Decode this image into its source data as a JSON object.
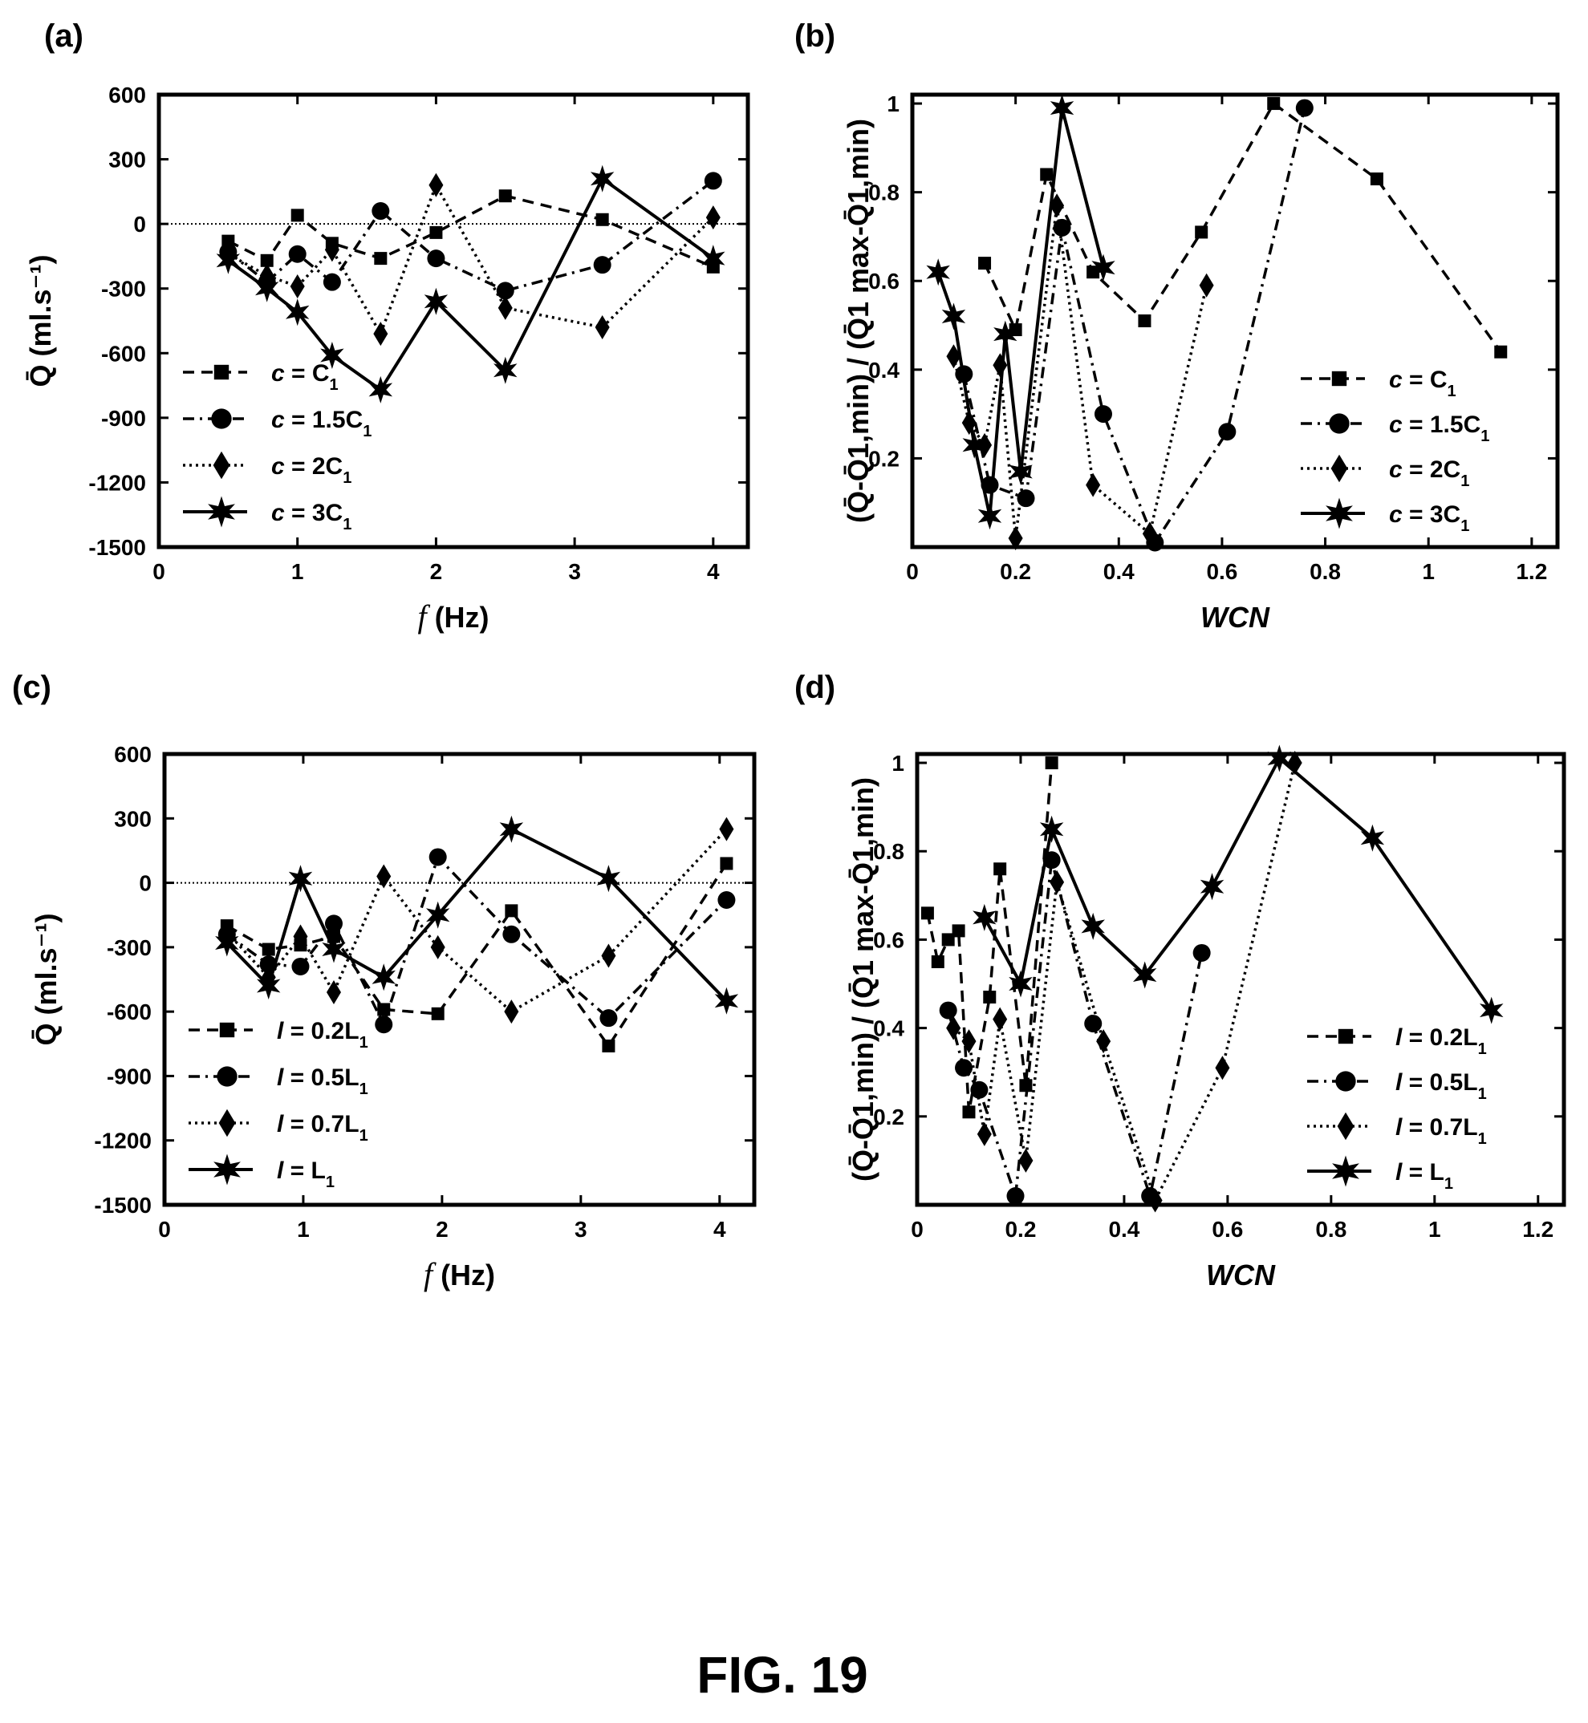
{
  "figure_caption": "FIG. 19",
  "chart_data": [
    {
      "id": "a",
      "panel_label": "(a)",
      "type": "line",
      "xlabel": "f (Hz)",
      "ylabel": "Q̄ (ml.s⁻¹)",
      "xlim": [
        0,
        4.25
      ],
      "ylim": [
        -1500,
        600
      ],
      "xticks": [
        0,
        1,
        2,
        3,
        4
      ],
      "yticks": [
        600,
        300,
        0,
        -300,
        -600,
        -900,
        -1200,
        -1500
      ],
      "zero_line": true,
      "legend": "bottom-left",
      "series": [
        {
          "name": "c = C1",
          "marker": "square",
          "dash": "dashed",
          "x": [
            0.5,
            0.78,
            1.0,
            1.25,
            1.6,
            2.0,
            2.5,
            3.2,
            4.0
          ],
          "y": [
            -80,
            -170,
            40,
            -90,
            -160,
            -40,
            130,
            20,
            -200
          ]
        },
        {
          "name": "c = 1.5C1",
          "marker": "circle",
          "dash": "dashdot",
          "x": [
            0.5,
            0.78,
            1.0,
            1.25,
            1.6,
            2.0,
            2.5,
            3.2,
            4.0
          ],
          "y": [
            -130,
            -270,
            -140,
            -270,
            60,
            -160,
            -310,
            -190,
            200
          ]
        },
        {
          "name": "c = 2C1",
          "marker": "diamond",
          "dash": "dotted",
          "x": [
            0.5,
            0.78,
            1.0,
            1.25,
            1.6,
            2.0,
            2.5,
            3.2,
            4.0
          ],
          "y": [
            -140,
            -240,
            -290,
            -120,
            -510,
            180,
            -390,
            -480,
            30
          ]
        },
        {
          "name": "c = 3C1",
          "marker": "star",
          "dash": "solid",
          "x": [
            0.5,
            0.78,
            1.0,
            1.25,
            1.6,
            2.0,
            2.5,
            3.2,
            4.0
          ],
          "y": [
            -170,
            -300,
            -410,
            -610,
            -770,
            -360,
            -680,
            210,
            -160
          ]
        }
      ]
    },
    {
      "id": "b",
      "panel_label": "(b)",
      "type": "line",
      "xlabel": "WCN",
      "ylabel": "(Q̄-Q̄1,min) / (Q̄1 max-Q̄1,min)",
      "xlim": [
        0,
        1.25
      ],
      "ylim": [
        0,
        1.02
      ],
      "xticks": [
        0,
        0.2,
        0.4,
        0.6,
        0.8,
        1,
        1.2
      ],
      "yticks": [
        0.2,
        0.4,
        0.6,
        0.8,
        1
      ],
      "legend": "right",
      "series": [
        {
          "name": "c = C1",
          "marker": "square",
          "dash": "dashed",
          "x": [
            0.14,
            0.2,
            0.26,
            0.35,
            0.45,
            0.56,
            0.7,
            0.9,
            1.14
          ],
          "y": [
            0.64,
            0.49,
            0.84,
            0.62,
            0.51,
            0.71,
            1.0,
            0.83,
            0.44
          ]
        },
        {
          "name": "c = 1.5C1",
          "marker": "circle",
          "dash": "dashdot",
          "x": [
            0.1,
            0.15,
            0.22,
            0.29,
            0.37,
            0.47,
            0.61,
            0.76
          ],
          "y": [
            0.39,
            0.14,
            0.11,
            0.72,
            0.3,
            0.01,
            0.26,
            0.99
          ]
        },
        {
          "name": "c = 2C1",
          "marker": "diamond",
          "dash": "dotted",
          "x": [
            0.08,
            0.11,
            0.14,
            0.17,
            0.2,
            0.28,
            0.35,
            0.46,
            0.57
          ],
          "y": [
            0.43,
            0.28,
            0.23,
            0.41,
            0.02,
            0.77,
            0.14,
            0.03,
            0.59
          ]
        },
        {
          "name": "c = 3C1",
          "marker": "star",
          "dash": "solid",
          "x": [
            0.05,
            0.08,
            0.12,
            0.15,
            0.18,
            0.21,
            0.29,
            0.37
          ],
          "y": [
            0.62,
            0.52,
            0.23,
            0.07,
            0.48,
            0.17,
            0.99,
            0.63
          ]
        }
      ]
    },
    {
      "id": "c",
      "panel_label": "(c)",
      "type": "line",
      "xlabel": "f (Hz)",
      "ylabel": "Q̄ (ml.s⁻¹)",
      "xlim": [
        0,
        4.25
      ],
      "ylim": [
        -1500,
        600
      ],
      "xticks": [
        0,
        1,
        2,
        3,
        4
      ],
      "yticks": [
        600,
        300,
        0,
        -300,
        -600,
        -900,
        -1200,
        -1500
      ],
      "zero_line": true,
      "legend": "bottom-left",
      "series": [
        {
          "name": "l = 0.2L1",
          "marker": "square",
          "dash": "dashed",
          "x": [
            0.45,
            0.75,
            0.98,
            1.22,
            1.58,
            1.97,
            2.5,
            3.2,
            4.05
          ],
          "y": [
            -200,
            -310,
            -290,
            -250,
            -590,
            -610,
            -130,
            -760,
            90
          ]
        },
        {
          "name": "l = 0.5L1",
          "marker": "circle",
          "dash": "dashdot",
          "x": [
            0.45,
            0.75,
            0.98,
            1.22,
            1.58,
            1.97,
            2.5,
            3.2,
            4.05
          ],
          "y": [
            -240,
            -380,
            -390,
            -190,
            -660,
            120,
            -240,
            -630,
            -80
          ]
        },
        {
          "name": "l = 0.7L1",
          "marker": "diamond",
          "dash": "dotted",
          "x": [
            0.45,
            0.75,
            0.98,
            1.22,
            1.58,
            1.97,
            2.5,
            3.2,
            4.05
          ],
          "y": [
            -230,
            -440,
            -250,
            -510,
            30,
            -300,
            -600,
            -340,
            250
          ]
        },
        {
          "name": "l = L1",
          "marker": "star",
          "dash": "solid",
          "x": [
            0.45,
            0.75,
            0.98,
            1.22,
            1.58,
            1.97,
            2.5,
            3.2,
            4.05
          ],
          "y": [
            -280,
            -480,
            20,
            -310,
            -440,
            -150,
            250,
            20,
            -550
          ]
        }
      ]
    },
    {
      "id": "d",
      "panel_label": "(d)",
      "type": "line",
      "xlabel": "WCN",
      "ylabel": "(Q̄-Q̄1,min) / (Q̄1 max-Q̄1,min)",
      "xlim": [
        0,
        1.25
      ],
      "ylim": [
        0,
        1.02
      ],
      "xticks": [
        0,
        0.2,
        0.4,
        0.6,
        0.8,
        1,
        1.2
      ],
      "yticks": [
        0.2,
        0.4,
        0.6,
        0.8,
        1
      ],
      "legend": "right",
      "series": [
        {
          "name": "l = 0.2L1",
          "marker": "square",
          "dash": "dashed",
          "x": [
            0.02,
            0.04,
            0.06,
            0.08,
            0.1,
            0.14,
            0.16,
            0.21,
            0.26
          ],
          "y": [
            0.66,
            0.55,
            0.6,
            0.62,
            0.21,
            0.47,
            0.76,
            0.27,
            1.0
          ]
        },
        {
          "name": "l = 0.5L1",
          "marker": "circle",
          "dash": "dashdot",
          "x": [
            0.06,
            0.09,
            0.12,
            0.19,
            0.26,
            0.34,
            0.45,
            0.55
          ],
          "y": [
            0.44,
            0.31,
            0.26,
            0.02,
            0.78,
            0.41,
            0.02,
            0.57
          ]
        },
        {
          "name": "l = 0.7L1",
          "marker": "diamond",
          "dash": "dotted",
          "x": [
            0.07,
            0.1,
            0.13,
            0.16,
            0.21,
            0.27,
            0.36,
            0.46,
            0.59,
            0.73
          ],
          "y": [
            0.4,
            0.37,
            0.16,
            0.42,
            0.1,
            0.73,
            0.37,
            0.01,
            0.31,
            1.0
          ]
        },
        {
          "name": "l = L1",
          "marker": "star",
          "dash": "solid",
          "x": [
            0.13,
            0.2,
            0.26,
            0.34,
            0.44,
            0.57,
            0.7,
            0.88,
            1.11
          ],
          "y": [
            0.65,
            0.5,
            0.85,
            0.63,
            0.52,
            0.72,
            1.01,
            0.83,
            0.44
          ]
        }
      ]
    }
  ]
}
